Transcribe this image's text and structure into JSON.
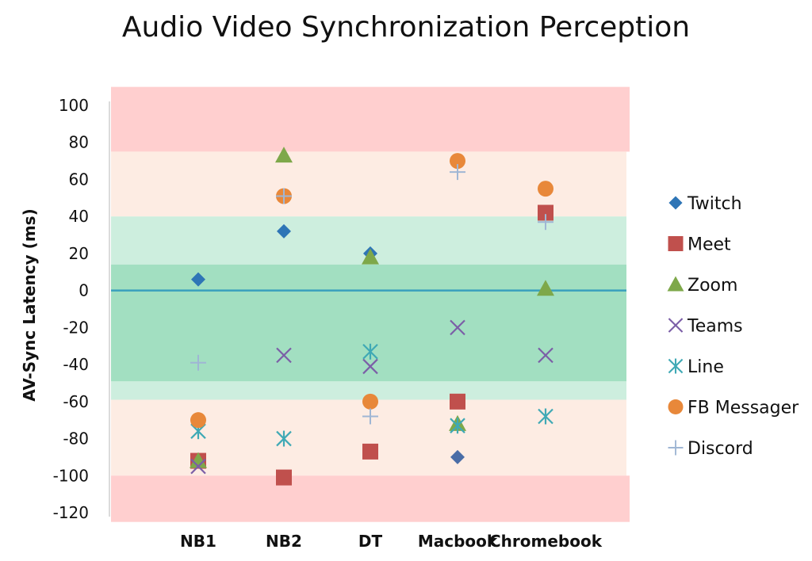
{
  "chart_data": {
    "type": "scatter",
    "title": "Audio Video Synchronization Perception",
    "xlabel": "",
    "ylabel": "AV-Sync Latency (ms)",
    "ylim": [
      -125,
      100
    ],
    "yticks": [
      100,
      80,
      60,
      40,
      20,
      0,
      -20,
      -40,
      -60,
      -80,
      -100,
      -120
    ],
    "categories": [
      "NB1",
      "NB2",
      "DT",
      "Macbook",
      "Chromebook"
    ],
    "legend_position": "right",
    "bands": [
      {
        "from": 75,
        "to": 110,
        "color": "#ffcfcf"
      },
      {
        "from": 40,
        "to": 75,
        "color": "#fdece3"
      },
      {
        "from": -59,
        "to": 40,
        "color": "#cdeede"
      },
      {
        "from": -49,
        "to": 14,
        "color": "#a2dfc1"
      },
      {
        "from": -100,
        "to": -59,
        "color": "#fdece3"
      },
      {
        "from": -125,
        "to": -100,
        "color": "#ffcfcf"
      }
    ],
    "zero_line_color": "#3aa0bd",
    "series": [
      {
        "name": "Twitch",
        "marker": "diamond",
        "color": "#2e75b6",
        "values": [
          6,
          32,
          20,
          null,
          null
        ]
      },
      {
        "name": "Meet",
        "marker": "square",
        "color": "#c0504d",
        "values": [
          -92,
          -101,
          -87,
          -60,
          42
        ]
      },
      {
        "name": "Zoom",
        "marker": "triangle",
        "color": "#7ea84a",
        "values": [
          -92,
          73,
          18,
          -72,
          1
        ]
      },
      {
        "name": "Teams",
        "marker": "x",
        "color": "#7b5ea7",
        "values": [
          -95,
          -35,
          -41,
          -20,
          -35
        ]
      },
      {
        "name": "Line",
        "marker": "star",
        "color": "#3fa9b5",
        "values": [
          -76,
          -80,
          -33,
          -73,
          -68
        ]
      },
      {
        "name": "FB Messager",
        "marker": "circle",
        "color": "#e8883a",
        "values": [
          -70,
          51,
          -60,
          70,
          55
        ]
      },
      {
        "name": "Discord",
        "marker": "plus",
        "color": "#9fb6d4",
        "values": [
          -39,
          51,
          -68,
          64,
          37
        ]
      }
    ],
    "extra_points": [
      {
        "series": "Twitch",
        "category": "Macbook",
        "value": -90,
        "color": "#4a6da7"
      }
    ]
  }
}
